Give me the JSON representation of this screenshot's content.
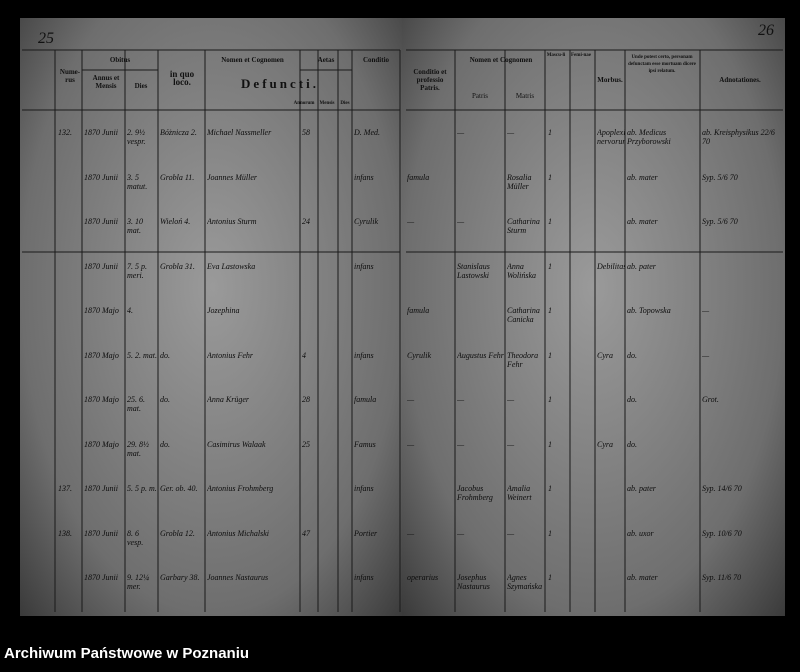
{
  "header": {
    "page_left": "25",
    "page_right": "26",
    "left": {
      "numerus": "Nume-rus",
      "obitus": "Obitus",
      "annus": "Annus et Mensis",
      "dies": "Dies",
      "loco": "in quo loco.",
      "nomen": "Nomen et Cognomen",
      "defuncti": "Defuncti.",
      "aetas": "Aetas",
      "annorum": "Annorum",
      "mensis": "Mensis",
      "dies_aet": "Dies",
      "conditio": "Conditio"
    },
    "right": {
      "conditio": "Conditio et professio Patris.",
      "nomen": "Nomen et Cognomen",
      "patris": "Patris",
      "matris": "Matris",
      "masculi": "Mascu-li",
      "feminae": "Femi-nae",
      "morbus": "Morbus.",
      "relatum": "Unde potest certo, personam defunctam esse mortuam dicere ipsi relatum.",
      "adnotationes": "Adnotationes."
    }
  },
  "rows": [
    {
      "num": "132.",
      "date": "1870 Junii",
      "day": "2. 9½ vespr.",
      "place": "Bóżnicza 2.",
      "name": "Michael Nassmeller",
      "age": "58",
      "cond": "D. Med.",
      "fcond": "",
      "father": "—",
      "mother": "—",
      "sex": "1",
      "morbus": "Apoplexia nervorum",
      "relatum": "ab. Medicus Przyborowski",
      "notes": "ab. Kreisphysikus 22/6 70"
    },
    {
      "num": "",
      "date": "1870 Junii",
      "day": "3. 5 matut.",
      "place": "Grobla 11.",
      "name": "Joannes Müller",
      "age": "",
      "cond": "infans",
      "fcond": "famula",
      "father": "",
      "mother": "Rosalia Müller",
      "sex": "1",
      "morbus": "",
      "relatum": "ab. mater",
      "notes": "Syp. 5/6 70"
    },
    {
      "num": "",
      "date": "1870 Junii",
      "day": "3. 10 mat.",
      "place": "Wieloń 4.",
      "name": "Antonius Sturm",
      "age": "24",
      "cond": "Cyrulik",
      "fcond": "—",
      "father": "—",
      "mother": "Catharina Sturm",
      "sex": "1",
      "morbus": "",
      "relatum": "ab. mater",
      "notes": "Syp. 5/6 70"
    },
    {
      "num": "",
      "date": "1870 Junii",
      "day": "7. 5 p. meri.",
      "place": "Grobla 31.",
      "name": "Eva Lastowska",
      "age": "",
      "cond": "infans",
      "fcond": "",
      "father": "Stanislaus Lastowski",
      "mother": "Anna Wolińska",
      "sex": "1",
      "morbus": "Debilitas",
      "relatum": "ab. pater",
      "notes": ""
    },
    {
      "num": "",
      "date": "1870 Majo",
      "day": "4.",
      "place": "",
      "name": "Jozephina",
      "age": "",
      "cond": "",
      "fcond": "famula",
      "father": "",
      "mother": "Catharina Canicka",
      "sex": "1",
      "morbus": "",
      "relatum": "ab. Topowska",
      "notes": "—"
    },
    {
      "num": "",
      "date": "1870 Majo",
      "day": "5. 2. mat.",
      "place": "do.",
      "name": "Antonius Fehr",
      "age": "4",
      "cond": "infans",
      "fcond": "Cyrulik",
      "father": "Augustus Fehr",
      "mother": "Theodora Fehr",
      "sex": "1",
      "morbus": "Cyra",
      "relatum": "do.",
      "notes": "—"
    },
    {
      "num": "",
      "date": "1870 Majo",
      "day": "25. 6. mat.",
      "place": "do.",
      "name": "Anna Krüger",
      "age": "28",
      "cond": "famula",
      "fcond": "—",
      "father": "—",
      "mother": "—",
      "sex": "1",
      "morbus": "",
      "relatum": "do.",
      "notes": "Grot."
    },
    {
      "num": "",
      "date": "1870 Majo",
      "day": "29. 8½ mat.",
      "place": "do.",
      "name": "Casimirus Walaak",
      "age": "25",
      "cond": "Famus",
      "fcond": "—",
      "father": "—",
      "mother": "—",
      "sex": "1",
      "morbus": "Cyra",
      "relatum": "do.",
      "notes": ""
    },
    {
      "num": "137.",
      "date": "1870 Junii",
      "day": "5. 5 p. m.",
      "place": "Ger. ob. 40.",
      "name": "Antonius Frohmberg",
      "age": "",
      "cond": "infans",
      "fcond": "",
      "father": "Jacobus Frohmberg",
      "mother": "Amalia Weinert",
      "sex": "1",
      "morbus": "",
      "relatum": "ab. pater",
      "notes": "Syp. 14/6 70"
    },
    {
      "num": "138.",
      "date": "1870 Junii",
      "day": "8. 6 vesp.",
      "place": "Grobla 12.",
      "name": "Antonius Michalski",
      "age": "47",
      "cond": "Portier",
      "fcond": "—",
      "father": "—",
      "mother": "—",
      "sex": "1",
      "morbus": "",
      "relatum": "ab. uxor",
      "notes": "Syp. 10/6 70"
    },
    {
      "num": "",
      "date": "1870 Junii",
      "day": "9. 12¼ mer.",
      "place": "Garbary 38.",
      "name": "Joannes Nastaurus",
      "age": "",
      "cond": "infans",
      "fcond": "operarius",
      "father": "Josephus Nastaurus",
      "mother": "Agnes Szymańska",
      "sex": "1",
      "morbus": "",
      "relatum": "ab. mater",
      "notes": "Syp. 11/6 70"
    }
  ],
  "footer": "Archiwum Państwowe w Poznaniu"
}
